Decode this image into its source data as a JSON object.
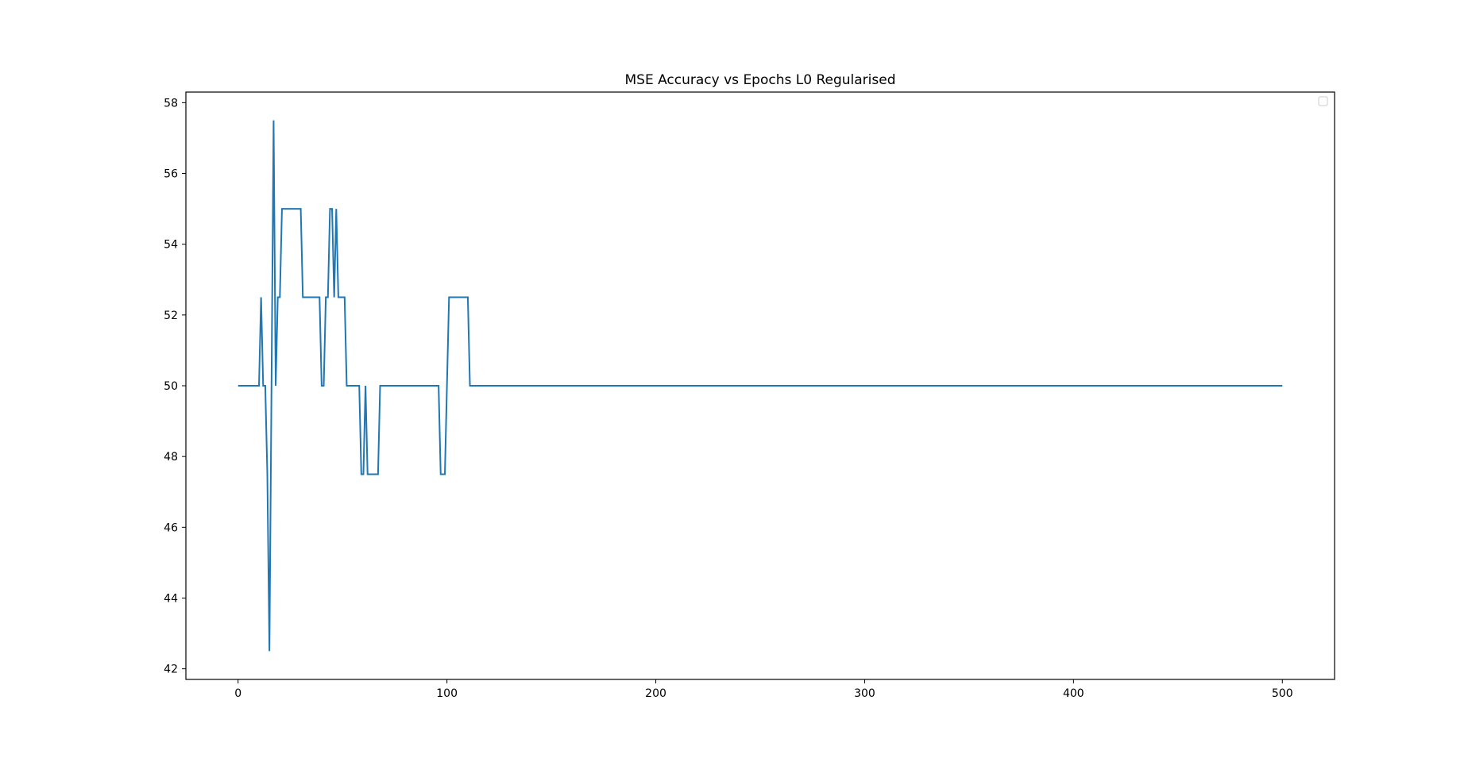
{
  "chart_data": {
    "type": "line",
    "title": "MSE Accuracy vs Epochs L0 Regularised",
    "xlabel": "",
    "ylabel": "",
    "xlim": [
      -25,
      525
    ],
    "ylim": [
      41.7,
      58.3
    ],
    "xticks": [
      0,
      100,
      200,
      300,
      400,
      500
    ],
    "yticks": [
      42,
      44,
      46,
      48,
      50,
      52,
      54,
      56,
      58
    ],
    "grid": false,
    "legend": {
      "placement": "top-right",
      "entries": []
    },
    "series": [
      {
        "color": "#1f77b4",
        "x": [
          0,
          10,
          11,
          12,
          13,
          14,
          15,
          16,
          17,
          18,
          19,
          20,
          21,
          22,
          23,
          24,
          25,
          26,
          27,
          28,
          29,
          30,
          31,
          32,
          33,
          34,
          35,
          36,
          37,
          38,
          39,
          40,
          41,
          42,
          43,
          44,
          45,
          46,
          47,
          48,
          49,
          50,
          51,
          52,
          53,
          54,
          55,
          56,
          57,
          58,
          59,
          60,
          61,
          62,
          63,
          64,
          65,
          66,
          67,
          68,
          69,
          70,
          71,
          72,
          73,
          74,
          75,
          76,
          77,
          78,
          79,
          80,
          81,
          82,
          83,
          84,
          85,
          86,
          87,
          88,
          89,
          90,
          91,
          92,
          93,
          94,
          95,
          96,
          97,
          98,
          99,
          100,
          101,
          102,
          103,
          104,
          105,
          106,
          107,
          108,
          109,
          110,
          111,
          500
        ],
        "y": [
          50,
          50,
          52.5,
          50,
          50,
          47.5,
          42.5,
          50,
          57.5,
          50,
          52.5,
          52.5,
          55,
          55,
          55,
          55,
          55,
          55,
          55,
          55,
          55,
          55,
          52.5,
          52.5,
          52.5,
          52.5,
          52.5,
          52.5,
          52.5,
          52.5,
          52.5,
          50,
          50,
          52.5,
          52.5,
          55,
          55,
          52.5,
          55,
          52.5,
          52.5,
          52.5,
          52.5,
          50,
          50,
          50,
          50,
          50,
          50,
          50,
          47.5,
          47.5,
          50,
          47.5,
          47.5,
          47.5,
          47.5,
          47.5,
          47.5,
          50,
          50,
          50,
          50,
          50,
          50,
          50,
          50,
          50,
          50,
          50,
          50,
          50,
          50,
          50,
          50,
          50,
          50,
          50,
          50,
          50,
          50,
          50,
          50,
          50,
          50,
          50,
          50,
          50,
          47.5,
          47.5,
          47.5,
          50,
          52.5,
          52.5,
          52.5,
          52.5,
          52.5,
          52.5,
          52.5,
          52.5,
          52.5,
          52.5,
          50,
          50
        ]
      }
    ]
  }
}
